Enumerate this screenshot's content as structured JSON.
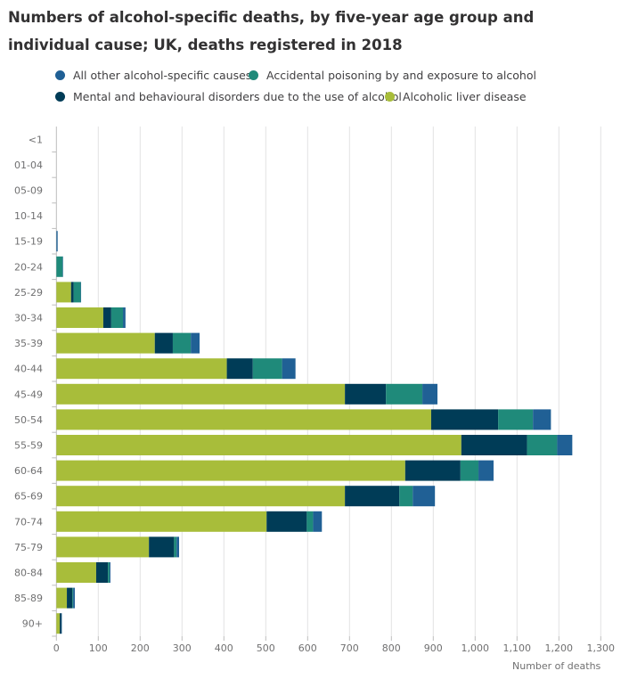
{
  "chart_data": {
    "type": "bar",
    "orientation": "horizontal",
    "stacked": true,
    "title": "Numbers of alcohol-specific deaths, by five-year age group and individual cause; UK, deaths registered in 2018",
    "xlabel": "Number of deaths",
    "ylabel": "",
    "xlim": [
      0,
      1300
    ],
    "xticks": [
      "0",
      "100",
      "200",
      "300",
      "400",
      "500",
      "600",
      "700",
      "800",
      "900",
      "1,000",
      "1,100",
      "1,200",
      "1,300"
    ],
    "grid": true,
    "legend_position": "top",
    "categories": [
      "<1",
      "01-04",
      "05-09",
      "10-14",
      "15-19",
      "20-24",
      "25-29",
      "30-34",
      "35-39",
      "40-44",
      "45-49",
      "50-54",
      "55-59",
      "60-64",
      "65-69",
      "70-74",
      "75-79",
      "80-84",
      "85-89",
      "90+"
    ],
    "legend": [
      {
        "name": "All other alcohol-specific causes",
        "color": "#206095"
      },
      {
        "name": "Accidental poisoning by and exposure to alcohol",
        "color": "#1f8a7a"
      },
      {
        "name": "Mental and behavioural disorders due to the use of alcohol",
        "color": "#003c57"
      },
      {
        "name": "Alcoholic liver disease",
        "color": "#a8bd3a"
      }
    ],
    "series": [
      {
        "name": "Alcoholic liver disease",
        "color": "#a8bd3a",
        "values": [
          0,
          0,
          0,
          0,
          0,
          0,
          35,
          112,
          235,
          407,
          689,
          895,
          967,
          833,
          689,
          502,
          221,
          95,
          25,
          8
        ]
      },
      {
        "name": "Mental and behavioural disorders due to the use of alcohol",
        "color": "#003c57",
        "values": [
          0,
          0,
          0,
          0,
          0,
          0,
          6,
          19,
          43,
          62,
          98,
          160,
          157,
          132,
          130,
          96,
          60,
          28,
          13,
          4
        ]
      },
      {
        "name": "Accidental poisoning by and exposure to alcohol",
        "color": "#1f8a7a",
        "values": [
          0,
          0,
          0,
          0,
          0,
          15,
          17,
          28,
          43,
          70,
          87,
          83,
          72,
          43,
          32,
          15,
          6,
          4,
          2,
          0
        ]
      },
      {
        "name": "All other alcohol-specific causes",
        "color": "#206095",
        "values": [
          0,
          0,
          0,
          0,
          3,
          1,
          1,
          6,
          21,
          32,
          36,
          43,
          36,
          36,
          53,
          21,
          6,
          2,
          4,
          1
        ]
      }
    ]
  }
}
